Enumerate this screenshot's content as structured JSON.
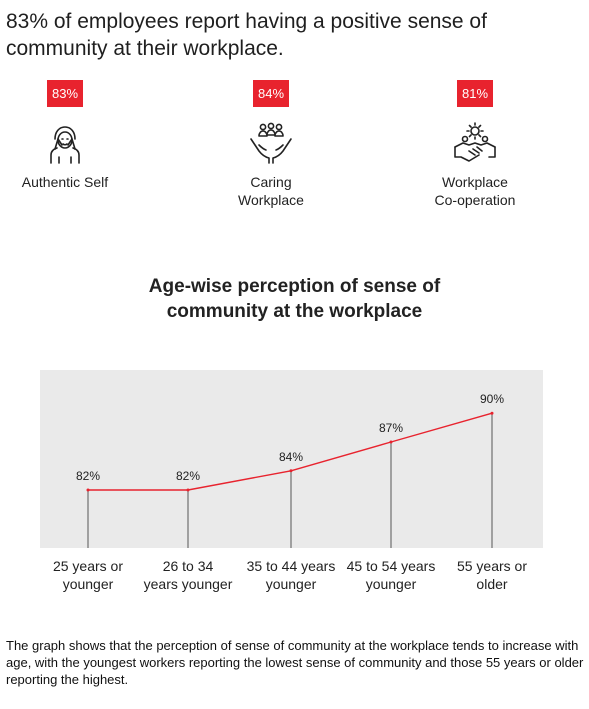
{
  "headline": "83% of employees report having a positive sense of community at their workplace.",
  "stats": [
    {
      "value": "83%",
      "label": "Authentic Self",
      "icon": "person-hands-on-face-icon"
    },
    {
      "value": "84%",
      "label": "Caring\nWorkplace",
      "icon": "hands-holding-people-icon"
    },
    {
      "value": "81%",
      "label": "Workplace\nCo-operation",
      "icon": "handshake-gear-icon"
    }
  ],
  "colors": {
    "accent": "#e8232e",
    "band": "#eaeaea",
    "text": "#1a1a1a"
  },
  "chart_data": {
    "type": "line",
    "title": "Age-wise perception of sense of\ncommunity at the workplace",
    "categories": [
      "25 years or\nyounger",
      "26 to 34\nyears younger",
      "35 to 44 years\nyounger",
      "45 to 54 years\nyounger",
      "55 years or\nolder"
    ],
    "values": [
      82,
      82,
      84,
      87,
      90
    ],
    "data_labels": [
      "82%",
      "82%",
      "84%",
      "87%",
      "90%"
    ],
    "grid": false
  },
  "footnote": "The graph shows that the perception of sense of community at the workplace tends to increase with age, with the youngest workers reporting the lowest sense of community and those 55 years or older reporting the highest."
}
